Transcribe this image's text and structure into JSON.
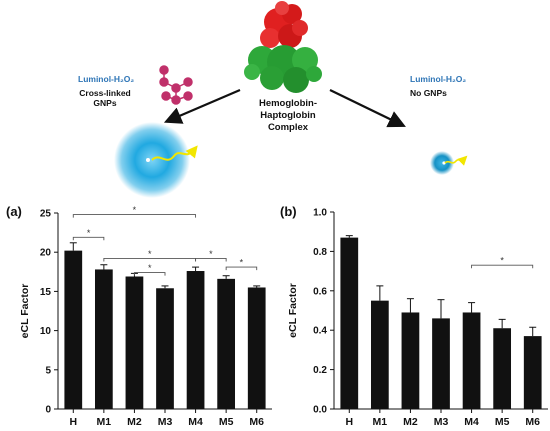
{
  "schematic": {
    "left_reagent": "Luminol-H₂O₂",
    "left_condition_line1": "Cross-linked",
    "left_condition_line2": "GNPs",
    "right_reagent": "Luminol-H₂O₂",
    "right_condition": "No GNPs",
    "complex_line1": "Hemoglobin-",
    "complex_line2": "Haptoglobin",
    "complex_line3": "Complex",
    "colors": {
      "reagent_text": "#2e75b6",
      "glow": "#1aa7e0",
      "nanoparticle": "#c0306a",
      "hemoglobin": "#e02020",
      "haptoglobin": "#2ea83a",
      "photon": "#f2e600"
    }
  },
  "chart_data": [
    {
      "panel": "(a)",
      "type": "bar",
      "categories": [
        "H",
        "M1",
        "M2",
        "M3",
        "M4",
        "M5",
        "M6"
      ],
      "values": [
        20.2,
        17.8,
        16.9,
        15.4,
        17.6,
        16.6,
        15.5
      ],
      "errors": [
        1.0,
        0.6,
        0.4,
        0.3,
        0.5,
        0.4,
        0.2
      ],
      "ylabel": "eCL Factor",
      "ylim": [
        0,
        25
      ],
      "yticks": [
        "0",
        "5",
        "10",
        "15",
        "20",
        "25"
      ],
      "bar_color": "#111111",
      "significance": [
        {
          "from": "H",
          "to": "M1",
          "label": "*"
        },
        {
          "from": "H",
          "to": "M4",
          "label": "*"
        },
        {
          "from": "M1",
          "to": "M4",
          "label": "*"
        },
        {
          "from": "M2",
          "to": "M3",
          "label": "*"
        },
        {
          "from": "M4",
          "to": "M5",
          "label": "*"
        },
        {
          "from": "M5",
          "to": "M6",
          "label": "*"
        }
      ]
    },
    {
      "panel": "(b)",
      "type": "bar",
      "categories": [
        "H",
        "M1",
        "M2",
        "M3",
        "M4",
        "M5",
        "M6"
      ],
      "values": [
        0.87,
        0.55,
        0.49,
        0.46,
        0.49,
        0.41,
        0.37
      ],
      "errors": [
        0.01,
        0.075,
        0.07,
        0.095,
        0.05,
        0.045,
        0.045
      ],
      "ylabel": "eCL Factor",
      "ylim": [
        0,
        1.0
      ],
      "yticks": [
        "0.0",
        "0.2",
        "0.4",
        "0.6",
        "0.8",
        "1.0"
      ],
      "bar_color": "#111111",
      "significance": [
        {
          "from": "M4",
          "to": "M6",
          "label": "*"
        }
      ]
    }
  ]
}
